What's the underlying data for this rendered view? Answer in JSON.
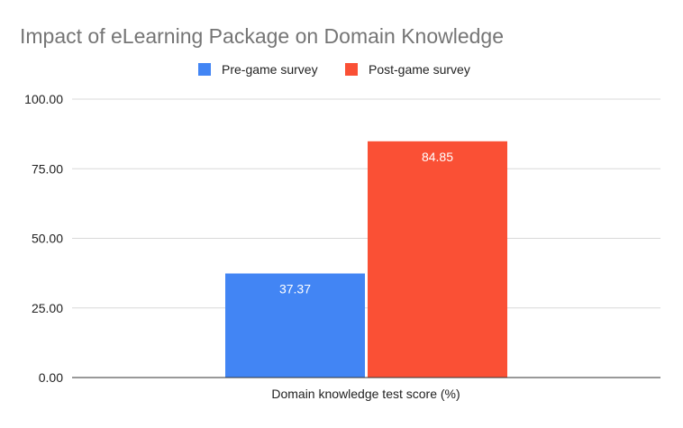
{
  "chart_data": {
    "type": "bar",
    "title": "Impact of eLearning Package on Domain Knowledge",
    "xlabel": "",
    "ylabel": "",
    "categories": [
      "Domain knowledge test score (%)"
    ],
    "series": [
      {
        "name": "Pre-game survey",
        "color": "#4285F4",
        "values": [
          37.37
        ],
        "value_labels": [
          "37.37"
        ]
      },
      {
        "name": "Post-game survey",
        "color": "#FA5035",
        "values": [
          84.85
        ],
        "value_labels": [
          "84.85"
        ]
      }
    ],
    "ylim": [
      0,
      100
    ],
    "yticks": [
      0,
      25,
      50,
      75,
      100
    ],
    "ytick_labels": [
      "0.00",
      "25.00",
      "50.00",
      "75.00",
      "100.00"
    ],
    "grid": true,
    "legend_position": "top"
  }
}
